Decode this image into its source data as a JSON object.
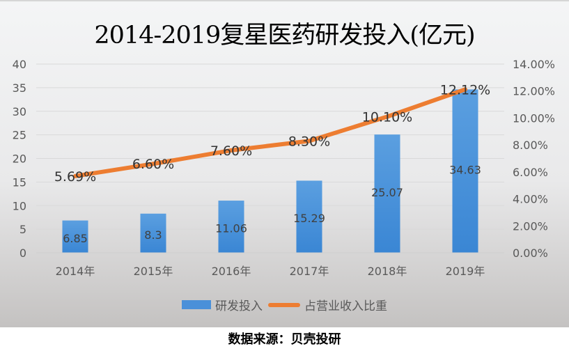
{
  "title": "2014-2019复星医药研发投入(亿元)",
  "source": "数据来源：贝壳投研",
  "legend": {
    "bar_label": "研发投入",
    "line_label": "占营业收入比重"
  },
  "colors": {
    "bar": "#4a90d9",
    "line": "#ed7d31",
    "axis_text": "#595959",
    "grid": "#d9d9d9"
  },
  "axes": {
    "left_ticks": [
      "0",
      "5",
      "10",
      "15",
      "20",
      "25",
      "30",
      "35",
      "40"
    ],
    "right_ticks": [
      "0.00%",
      "2.00%",
      "4.00%",
      "6.00%",
      "8.00%",
      "10.00%",
      "12.00%",
      "14.00%"
    ],
    "x_ticks": [
      "2014年",
      "2015年",
      "2016年",
      "2017年",
      "2018年",
      "2019年"
    ]
  },
  "bar_labels": [
    "6.85",
    "8.3",
    "11.06",
    "15.29",
    "25.07",
    "34.63"
  ],
  "line_labels": [
    "5.69%",
    "6.60%",
    "7.60%",
    "8.30%",
    "10.10%",
    "12.12%"
  ],
  "chart_data": {
    "type": "bar",
    "title": "2014-2019复星医药研发投入(亿元)",
    "categories": [
      "2014年",
      "2015年",
      "2016年",
      "2017年",
      "2018年",
      "2019年"
    ],
    "series": [
      {
        "name": "研发投入",
        "type": "bar",
        "axis": "left",
        "values": [
          6.85,
          8.3,
          11.06,
          15.29,
          25.07,
          34.63
        ]
      },
      {
        "name": "占营业收入比重",
        "type": "line",
        "axis": "right",
        "values": [
          5.69,
          6.6,
          7.6,
          8.3,
          10.1,
          12.12
        ],
        "unit": "%"
      }
    ],
    "xlabel": "",
    "ylabel": "",
    "ylim": [
      0,
      40
    ],
    "y2lim": [
      0,
      14
    ],
    "grid": true,
    "legend_position": "bottom",
    "annotation": "数据来源：贝壳投研"
  }
}
